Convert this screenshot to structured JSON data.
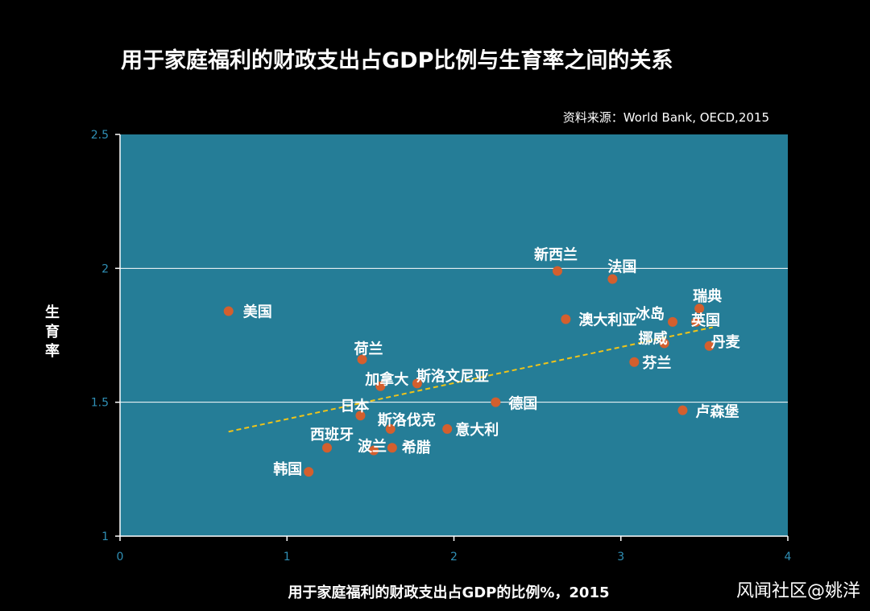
{
  "chart_data": {
    "type": "scatter",
    "title": "用于家庭福利的财政支出占GDP比例与生育率之间的关系",
    "source": "资料来源：World Bank,  OECD,2015",
    "xlabel": "用于家庭福利的财政支出占GDP的比例%，2015",
    "ylabel_chars": [
      "生",
      "育",
      "率"
    ],
    "xlim": [
      0,
      4
    ],
    "ylim": [
      1,
      2.5
    ],
    "xticks": [
      "0",
      "1",
      "2",
      "3",
      "4"
    ],
    "yticks": [
      "1",
      "1.5",
      "2",
      "2.5"
    ],
    "grid_y": [
      1.5,
      2
    ],
    "points": [
      {
        "name": "美国",
        "x": 0.65,
        "y": 1.84
      },
      {
        "name": "新西兰",
        "x": 2.62,
        "y": 1.99
      },
      {
        "name": "法国",
        "x": 2.95,
        "y": 1.96
      },
      {
        "name": "瑞典",
        "x": 3.47,
        "y": 1.85
      },
      {
        "name": "冰岛",
        "x": 3.31,
        "y": 1.8
      },
      {
        "name": "英国",
        "x": 3.45,
        "y": 1.8
      },
      {
        "name": "澳大利亚",
        "x": 2.67,
        "y": 1.81
      },
      {
        "name": "挪威",
        "x": 3.26,
        "y": 1.72
      },
      {
        "name": "丹麦",
        "x": 3.53,
        "y": 1.71
      },
      {
        "name": "芬兰",
        "x": 3.08,
        "y": 1.65
      },
      {
        "name": "荷兰",
        "x": 1.45,
        "y": 1.66
      },
      {
        "name": "加拿大",
        "x": 1.56,
        "y": 1.56
      },
      {
        "name": "斯洛文尼亚",
        "x": 1.78,
        "y": 1.57
      },
      {
        "name": "德国",
        "x": 2.25,
        "y": 1.5
      },
      {
        "name": "卢森堡",
        "x": 3.37,
        "y": 1.47
      },
      {
        "name": "日本",
        "x": 1.44,
        "y": 1.45
      },
      {
        "name": "斯洛伐克",
        "x": 1.62,
        "y": 1.4
      },
      {
        "name": "意大利",
        "x": 1.96,
        "y": 1.4
      },
      {
        "name": "西班牙",
        "x": 1.24,
        "y": 1.33
      },
      {
        "name": "波兰",
        "x": 1.52,
        "y": 1.32
      },
      {
        "name": "希腊",
        "x": 1.63,
        "y": 1.33
      },
      {
        "name": "韩国",
        "x": 1.13,
        "y": 1.24
      }
    ],
    "trendline": {
      "x": [
        0.65,
        3.55
      ],
      "y": [
        1.39,
        1.78
      ]
    },
    "colors": {
      "plot_bg": "#257d97",
      "point": "#d35f2e",
      "trend": "#f0c419",
      "grid": "#ffffff",
      "axis": "#ffffff",
      "tick": "#2f8fb5"
    }
  },
  "watermark": "风闻社区@姚洋"
}
